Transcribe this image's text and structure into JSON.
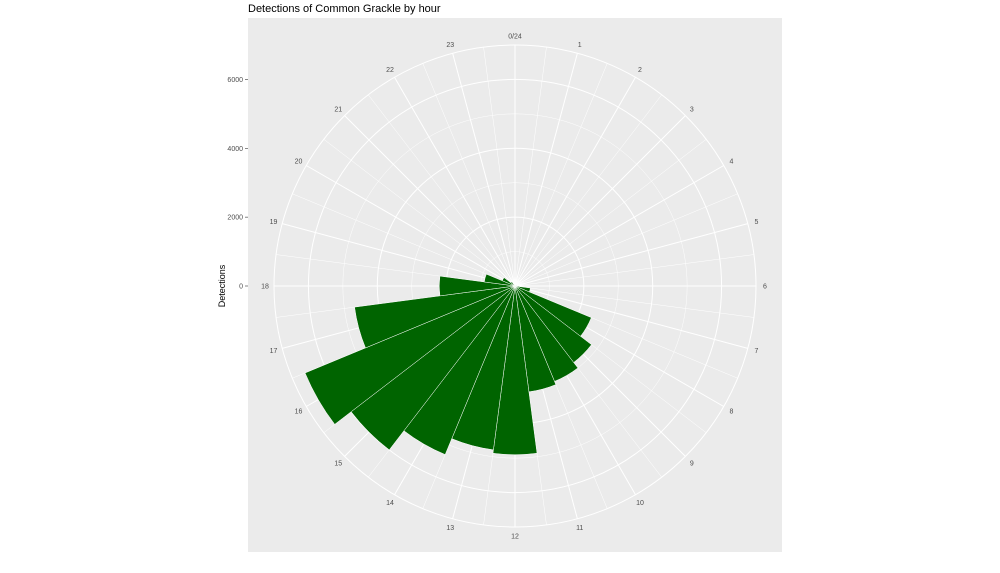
{
  "chart_data": {
    "type": "bar",
    "coord": "polar",
    "title": "Detections of Common Grackle by hour",
    "xlabel": "",
    "ylabel": "Detections",
    "categories": [
      0,
      1,
      2,
      3,
      4,
      5,
      6,
      7,
      8,
      9,
      10,
      11,
      12,
      13,
      14,
      15,
      16,
      17,
      18,
      19,
      20,
      21,
      22,
      23
    ],
    "angle_labels": [
      "0/24",
      "1",
      "2",
      "3",
      "4",
      "5",
      "6",
      "7",
      "8",
      "9",
      "10",
      "11",
      "12",
      "13",
      "14",
      "15",
      "16",
      "17",
      "18",
      "19",
      "20",
      "21",
      "22",
      "23"
    ],
    "values": [
      0,
      0,
      0,
      0,
      0,
      50,
      450,
      2400,
      2800,
      3000,
      3100,
      4900,
      4800,
      5300,
      6000,
      6600,
      4700,
      2200,
      900,
      400,
      150,
      0,
      0,
      0
    ],
    "ylim": [
      0,
      7000
    ],
    "y_ticks": [
      0,
      2000,
      4000,
      6000
    ],
    "bar_color": "#006400",
    "panel_color": "#ebebeb",
    "grid_color": "#ffffff",
    "grid": true,
    "legend": "none"
  }
}
